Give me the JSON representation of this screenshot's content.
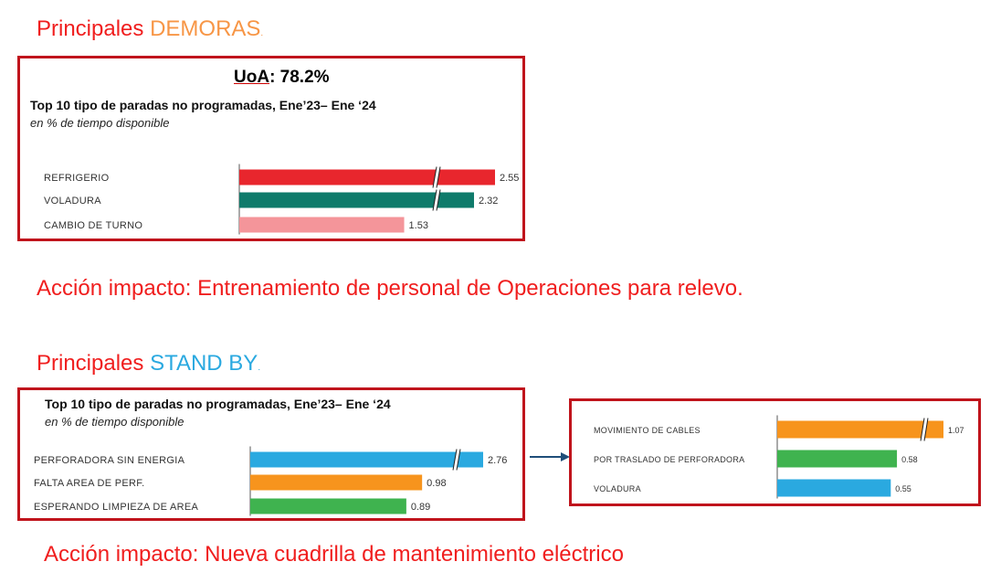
{
  "section1": {
    "heading_prefix": "Principales",
    "heading_highlight": "DEMORAS",
    "heading_suffix": ".",
    "uoa_label": "UoA",
    "uoa_value": ": 78.2%",
    "chart_title": "Top 10 tipo de paradas no programadas, Ene’23– Ene ‘24",
    "chart_subtitle": "en % de tiempo disponible",
    "action": "Acción impacto: Entrenamiento de personal de Operaciones para relevo."
  },
  "section2": {
    "heading_prefix": "Principales",
    "heading_highlight": "STAND BY",
    "heading_suffix": ".",
    "chart_title": "Top 10 tipo de paradas no programadas, Ene’23– Ene ‘24",
    "chart_subtitle": "en % de tiempo disponible",
    "action": "Acción impacto: Nueva cuadrilla de mantenimiento eléctrico"
  },
  "colors": {
    "red": "#e8262d",
    "teal": "#0f7b6b",
    "pink": "#f4959a",
    "blue": "#2aa9e0",
    "orange": "#f7941d",
    "green": "#3fb34f",
    "arrow": "#1f4e79"
  },
  "chart_data": [
    {
      "type": "bar",
      "orientation": "horizontal",
      "title": "Top 10 tipo de paradas no programadas, Ene’23– Ene ‘24",
      "subtitle": "en % de tiempo disponible",
      "categories": [
        "REFRIGERIO",
        "VOLADURA",
        "CAMBIO DE TURNO"
      ],
      "values": [
        2.55,
        2.32,
        1.53
      ],
      "value_labels": [
        "2.55",
        "2.32",
        "1.53"
      ],
      "colors": [
        "#e8262d",
        "#0f7b6b",
        "#f4959a"
      ],
      "axis_break": [
        true,
        true,
        false
      ]
    },
    {
      "type": "bar",
      "orientation": "horizontal",
      "title": "Top 10 tipo de paradas no programadas, Ene’23– Ene ‘24",
      "subtitle": "en % de tiempo disponible",
      "categories": [
        "PERFORADORA SIN ENERGIA",
        "FALTA AREA DE PERF.",
        "ESPERANDO LIMPIEZA DE AREA"
      ],
      "values": [
        2.76,
        0.98,
        0.89
      ],
      "value_labels": [
        "2.76",
        "0.98",
        "0.89"
      ],
      "colors": [
        "#2aa9e0",
        "#f7941d",
        "#3fb34f"
      ],
      "axis_break": [
        true,
        false,
        false
      ]
    },
    {
      "type": "bar",
      "orientation": "horizontal",
      "categories": [
        "MOVIMIENTO DE CABLES",
        "POR TRASLADO DE PERFORADORA",
        "VOLADURA"
      ],
      "values": [
        1.07,
        0.58,
        0.55
      ],
      "value_labels": [
        "1.07",
        "0.58",
        "0.55"
      ],
      "colors": [
        "#f7941d",
        "#3fb34f",
        "#2aa9e0"
      ],
      "axis_break": [
        true,
        false,
        false
      ]
    }
  ]
}
